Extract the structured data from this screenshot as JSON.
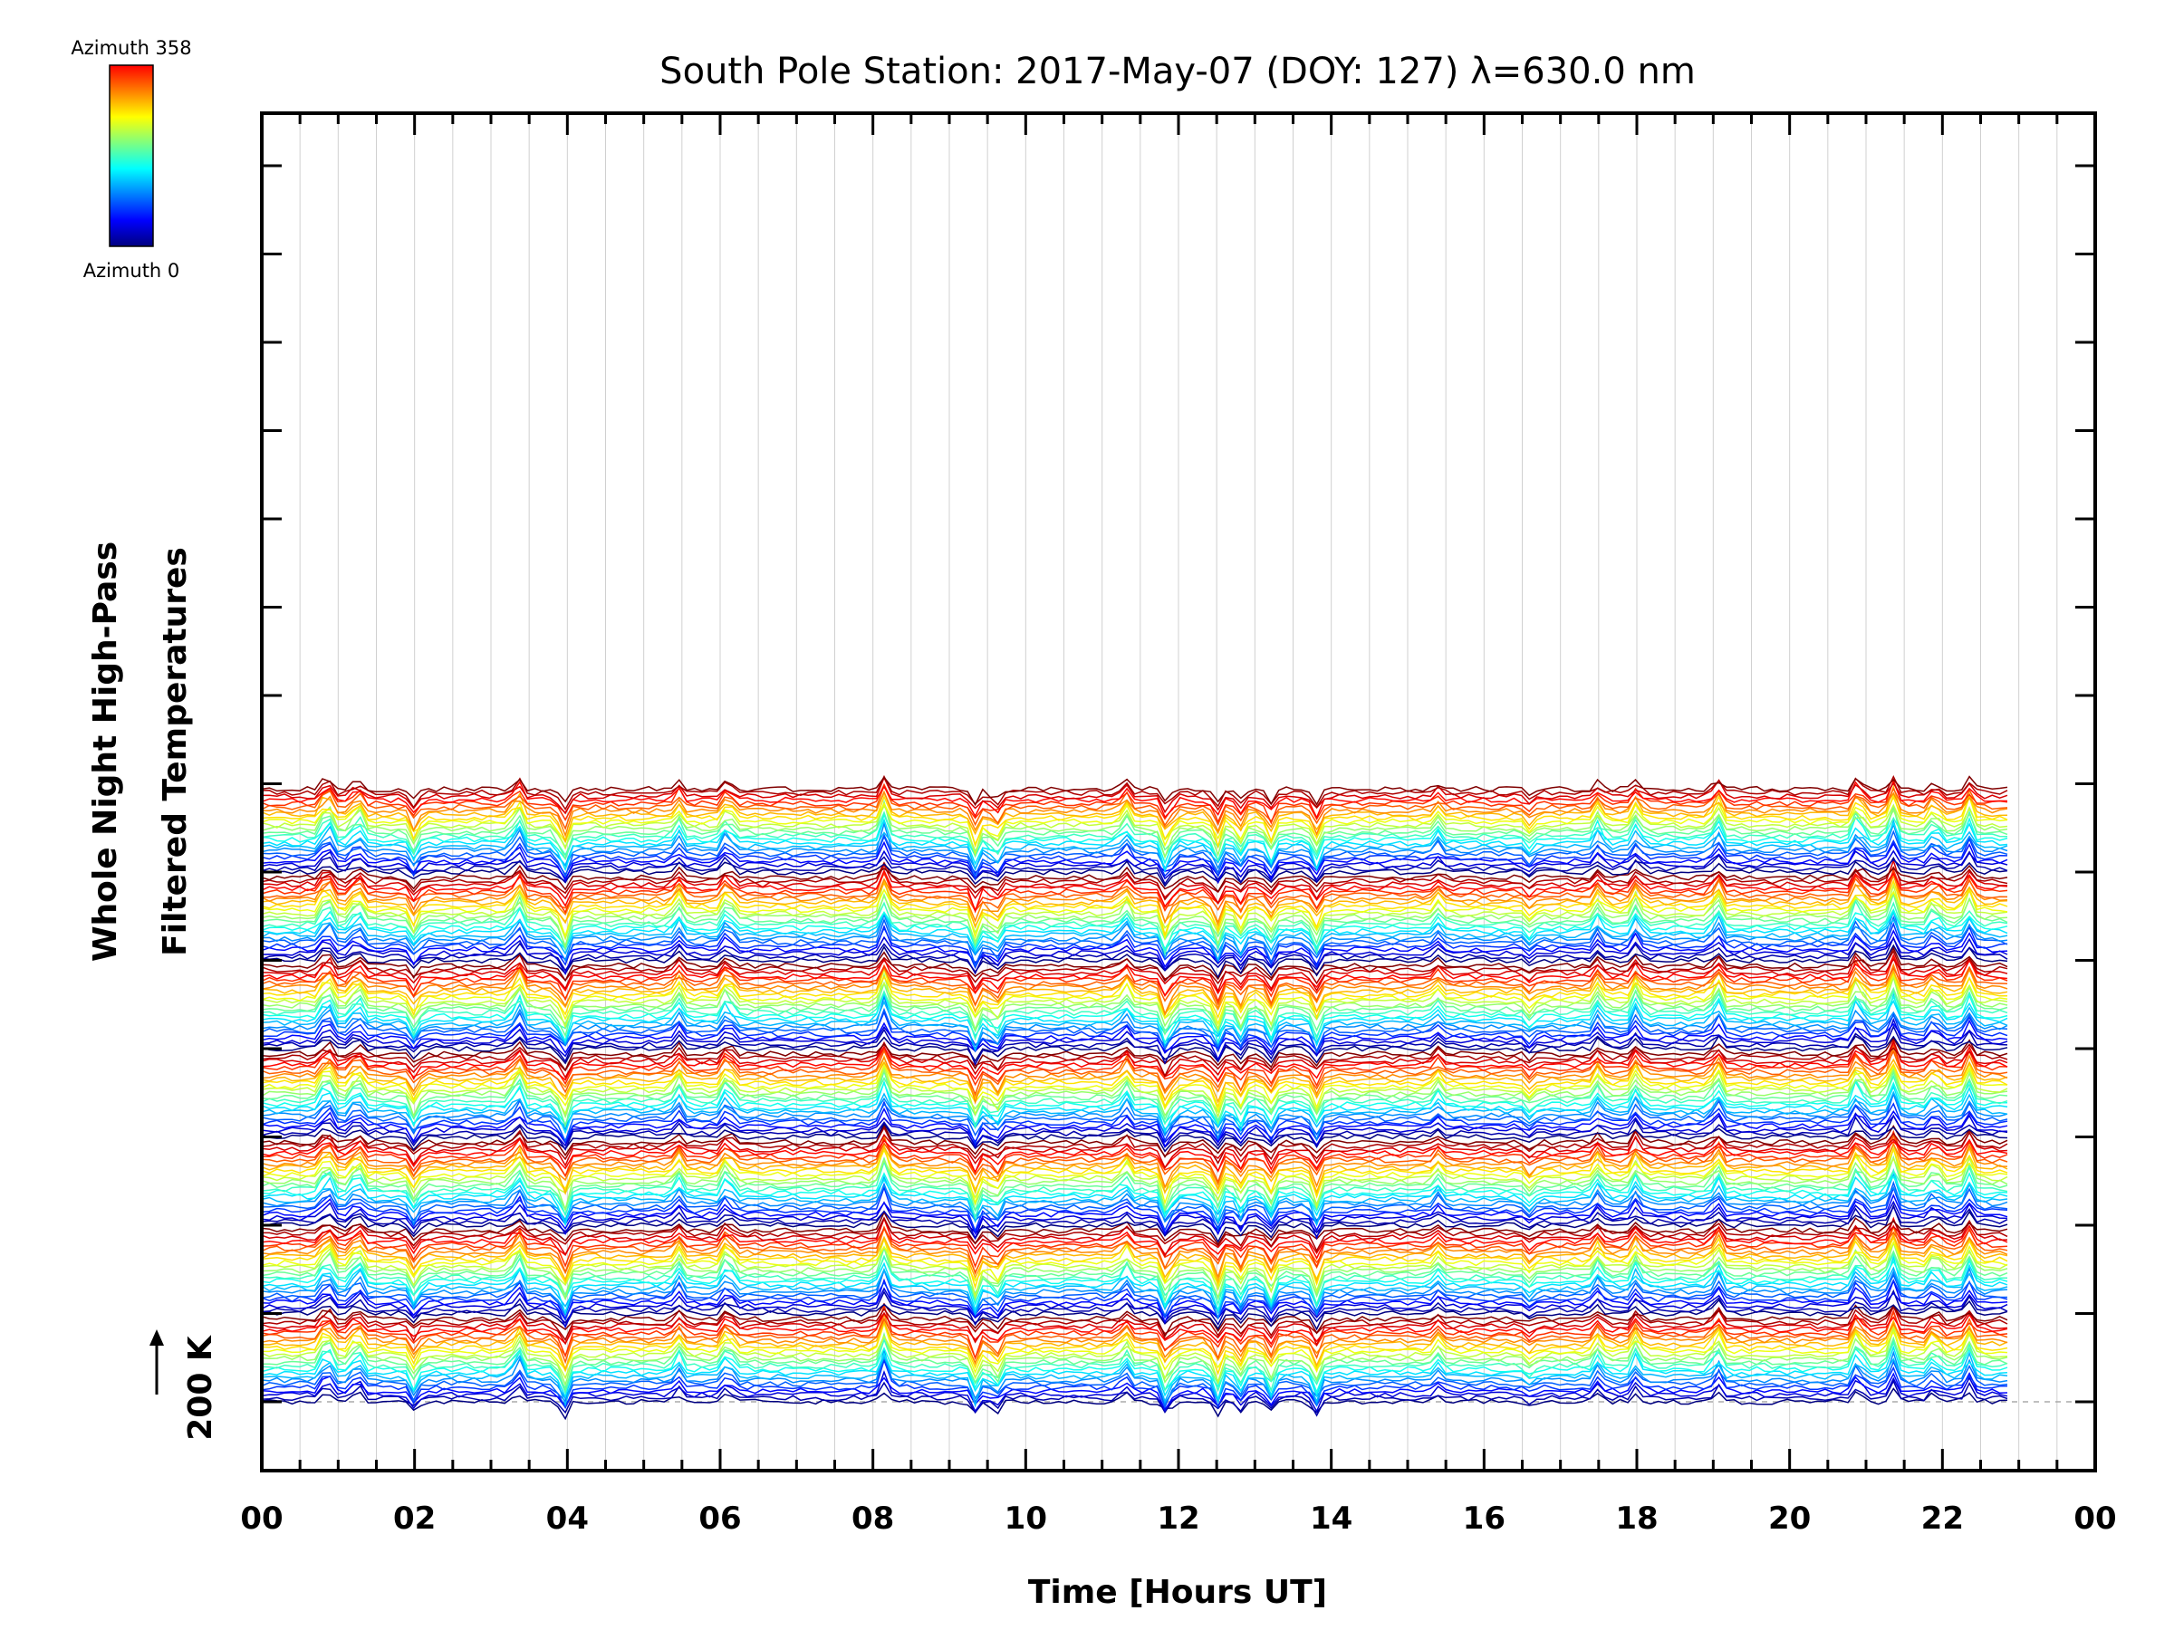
{
  "chart_data": {
    "type": "line",
    "title": "South Pole Station: 2017-May-07 (DOY: 127) λ=630.0 nm",
    "xlabel": "Time [Hours UT]",
    "ylabel_line1": "Whole Night High-Pass",
    "ylabel_line2": "Filtered Temperatures",
    "scale_label": "200 K",
    "xlim": [
      0,
      24
    ],
    "data_end_hour": 22.85,
    "x_tick_labels": [
      "00",
      "02",
      "04",
      "06",
      "08",
      "10",
      "12",
      "14",
      "16",
      "18",
      "20",
      "22",
      "00"
    ],
    "major_y_ticks": 15,
    "colorbar": {
      "top_label": "Azimuth 358",
      "bottom_label": "Azimuth 0",
      "colormap": [
        "#00007f",
        "#0000ff",
        "#007fff",
        "#00ffff",
        "#7fff7f",
        "#ffff00",
        "#ff7f00",
        "#ff0000"
      ]
    },
    "groups": 7,
    "series_per_group": 24,
    "series_description": "stacked high-pass filtered temperature traces, colored by azimuth 0-358",
    "events_hours": [
      0.85,
      1.25,
      2.0,
      3.35,
      3.95,
      5.45,
      6.1,
      8.15,
      9.35,
      9.6,
      11.3,
      11.85,
      12.5,
      12.8,
      13.2,
      13.8,
      15.4,
      16.6,
      17.5,
      18.0,
      19.05,
      20.9,
      21.35,
      21.9,
      22.35
    ],
    "events_sign": [
      1,
      1,
      -1,
      1,
      -1,
      1,
      1,
      1,
      -1,
      -1,
      1,
      -1,
      -1,
      -1,
      -1,
      -1,
      1,
      -1,
      1,
      1,
      1,
      1,
      1,
      1,
      1
    ],
    "events_amplitude_K": [
      55,
      45,
      40,
      50,
      60,
      35,
      45,
      60,
      55,
      45,
      35,
      60,
      55,
      40,
      45,
      50,
      25,
      20,
      35,
      40,
      45,
      55,
      60,
      35,
      45
    ]
  }
}
